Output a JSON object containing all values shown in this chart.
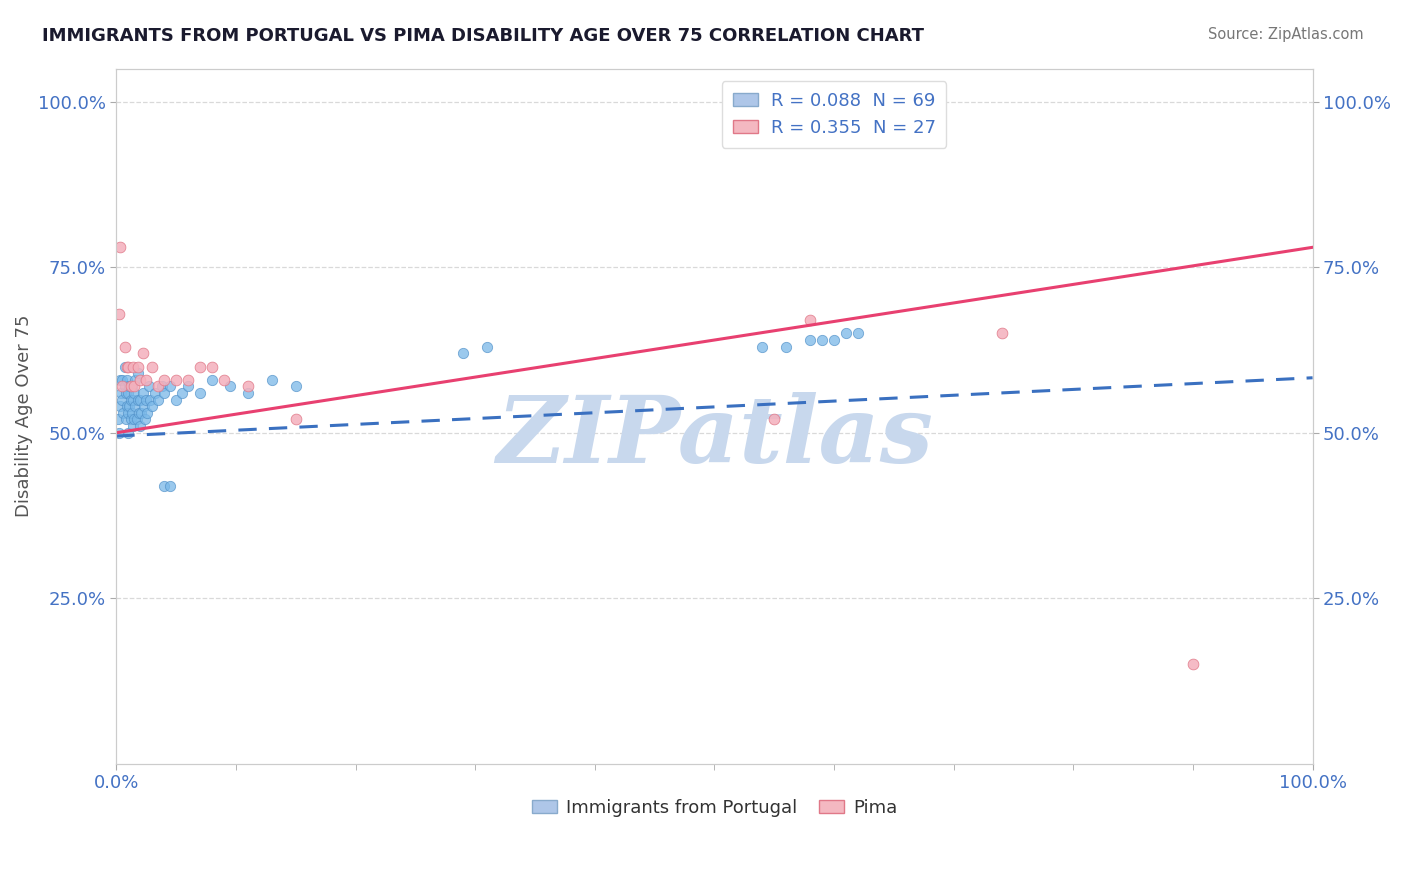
{
  "title": "IMMIGRANTS FROM PORTUGAL VS PIMA DISABILITY AGE OVER 75 CORRELATION CHART",
  "source": "Source: ZipAtlas.com",
  "ylabel": "Disability Age Over 75",
  "legend_r_entries": [
    {
      "label": "R = 0.088  N = 69",
      "color": "#aec6e8"
    },
    {
      "label": "R = 0.355  N = 27",
      "color": "#f4b8c1"
    }
  ],
  "blue_scatter_x": [
    0.001,
    0.002,
    0.003,
    0.003,
    0.004,
    0.005,
    0.005,
    0.006,
    0.007,
    0.007,
    0.008,
    0.008,
    0.009,
    0.009,
    0.01,
    0.01,
    0.01,
    0.011,
    0.011,
    0.012,
    0.012,
    0.013,
    0.013,
    0.014,
    0.014,
    0.015,
    0.015,
    0.016,
    0.016,
    0.017,
    0.018,
    0.018,
    0.019,
    0.02,
    0.02,
    0.021,
    0.022,
    0.023,
    0.024,
    0.025,
    0.026,
    0.027,
    0.028,
    0.03,
    0.032,
    0.035,
    0.038,
    0.04,
    0.045,
    0.05,
    0.055,
    0.06,
    0.07,
    0.08,
    0.095,
    0.11,
    0.13,
    0.15,
    0.04,
    0.045,
    0.29,
    0.31,
    0.54,
    0.56,
    0.58,
    0.59,
    0.6,
    0.61,
    0.62
  ],
  "blue_scatter_y": [
    0.52,
    0.5,
    0.54,
    0.58,
    0.56,
    0.55,
    0.58,
    0.53,
    0.57,
    0.6,
    0.52,
    0.56,
    0.54,
    0.58,
    0.5,
    0.53,
    0.56,
    0.54,
    0.57,
    0.52,
    0.55,
    0.53,
    0.57,
    0.51,
    0.55,
    0.52,
    0.56,
    0.54,
    0.58,
    0.52,
    0.55,
    0.59,
    0.53,
    0.51,
    0.55,
    0.53,
    0.56,
    0.54,
    0.52,
    0.55,
    0.53,
    0.57,
    0.55,
    0.54,
    0.56,
    0.55,
    0.57,
    0.56,
    0.57,
    0.55,
    0.56,
    0.57,
    0.56,
    0.58,
    0.57,
    0.56,
    0.58,
    0.57,
    0.42,
    0.42,
    0.62,
    0.63,
    0.63,
    0.63,
    0.64,
    0.64,
    0.64,
    0.65,
    0.65
  ],
  "pink_scatter_x": [
    0.002,
    0.003,
    0.005,
    0.007,
    0.009,
    0.01,
    0.012,
    0.014,
    0.015,
    0.018,
    0.02,
    0.022,
    0.025,
    0.03,
    0.035,
    0.04,
    0.05,
    0.06,
    0.07,
    0.08,
    0.09,
    0.11,
    0.15,
    0.55,
    0.58,
    0.74,
    0.9
  ],
  "pink_scatter_y": [
    0.68,
    0.78,
    0.57,
    0.63,
    0.6,
    0.6,
    0.57,
    0.6,
    0.57,
    0.6,
    0.58,
    0.62,
    0.58,
    0.6,
    0.57,
    0.58,
    0.58,
    0.58,
    0.6,
    0.6,
    0.58,
    0.57,
    0.52,
    0.52,
    0.67,
    0.65,
    0.15
  ],
  "blue_trend_slope": 0.088,
  "blue_trend_intercept": 0.495,
  "pink_trend_slope": 0.28,
  "pink_trend_intercept": 0.5,
  "xlim": [
    0.0,
    1.0
  ],
  "ylim": [
    0.0,
    1.05
  ],
  "yticks": [
    0.25,
    0.5,
    0.75,
    1.0
  ],
  "ytick_labels": [
    "25.0%",
    "50.0%",
    "75.0%",
    "100.0%"
  ],
  "xtick_labels": [
    "0.0%",
    "100.0%"
  ],
  "background_color": "#ffffff",
  "grid_color": "#d0d0d0",
  "axis_color": "#4472c4",
  "blue_dot_color": "#7ab8e8",
  "blue_dot_edge": "#5090c8",
  "pink_dot_color": "#f4b0bc",
  "pink_dot_edge": "#e07888",
  "blue_line_color": "#3a70c0",
  "pink_line_color": "#e84070",
  "watermark_text": "ZIPatlas",
  "watermark_color": "#c8d8ed"
}
